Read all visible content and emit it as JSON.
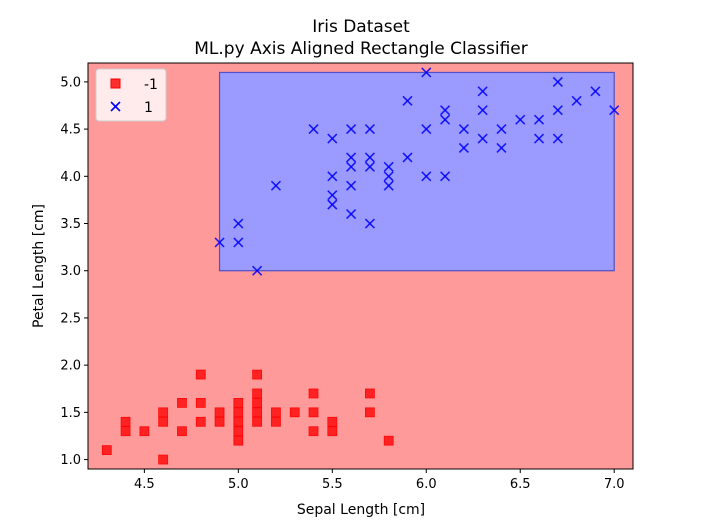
{
  "chart_data": {
    "type": "scatter",
    "title": "Iris Dataset",
    "subtitle": "ML.py Axis Aligned Rectangle Classifier",
    "xlabel": "Sepal Length [cm]",
    "ylabel": "Petal Length [cm]",
    "xlim": [
      4.2,
      7.1
    ],
    "ylim": [
      0.9,
      5.2
    ],
    "xticks": [
      4.5,
      5.0,
      5.5,
      6.0,
      6.5,
      7.0
    ],
    "xtick_labels": [
      "4.5",
      "5.0",
      "5.5",
      "6.0",
      "6.5",
      "7.0"
    ],
    "yticks": [
      1.0,
      1.5,
      2.0,
      2.5,
      3.0,
      3.5,
      4.0,
      4.5,
      5.0
    ],
    "ytick_labels": [
      "1.0",
      "1.5",
      "2.0",
      "2.5",
      "3.0",
      "3.5",
      "4.0",
      "4.5",
      "5.0"
    ],
    "grid": false,
    "legend_position": "top-left",
    "background_region": {
      "label": "-1",
      "color": "#ff9a9a"
    },
    "decision_rectangle": {
      "x": [
        4.9,
        7.0
      ],
      "y": [
        3.0,
        5.1
      ],
      "label": "1",
      "color": "#9a9aff",
      "edge_color": "#5050c8"
    },
    "series": [
      {
        "name": "-1",
        "marker": "square",
        "color": "#ff0000",
        "points": [
          [
            4.3,
            1.1
          ],
          [
            4.4,
            1.4
          ],
          [
            4.4,
            1.3
          ],
          [
            4.5,
            1.3
          ],
          [
            4.6,
            1.5
          ],
          [
            4.6,
            1.4
          ],
          [
            4.6,
            1.0
          ],
          [
            4.7,
            1.6
          ],
          [
            4.7,
            1.3
          ],
          [
            4.8,
            1.9
          ],
          [
            4.8,
            1.6
          ],
          [
            4.8,
            1.4
          ],
          [
            4.9,
            1.5
          ],
          [
            4.9,
            1.4
          ],
          [
            5.0,
            1.6
          ],
          [
            5.0,
            1.5
          ],
          [
            5.0,
            1.4
          ],
          [
            5.0,
            1.3
          ],
          [
            5.0,
            1.2
          ],
          [
            5.1,
            1.9
          ],
          [
            5.1,
            1.7
          ],
          [
            5.1,
            1.6
          ],
          [
            5.1,
            1.5
          ],
          [
            5.1,
            1.4
          ],
          [
            5.2,
            1.5
          ],
          [
            5.2,
            1.4
          ],
          [
            5.3,
            1.5
          ],
          [
            5.4,
            1.7
          ],
          [
            5.4,
            1.5
          ],
          [
            5.4,
            1.3
          ],
          [
            5.5,
            1.4
          ],
          [
            5.5,
            1.3
          ],
          [
            5.7,
            1.7
          ],
          [
            5.7,
            1.5
          ],
          [
            5.8,
            1.2
          ]
        ]
      },
      {
        "name": "1",
        "marker": "x",
        "color": "#0000ff",
        "points": [
          [
            4.9,
            3.3
          ],
          [
            5.0,
            3.5
          ],
          [
            5.0,
            3.3
          ],
          [
            5.1,
            3.0
          ],
          [
            5.2,
            3.9
          ],
          [
            5.4,
            4.5
          ],
          [
            5.5,
            4.4
          ],
          [
            5.5,
            4.0
          ],
          [
            5.5,
            3.8
          ],
          [
            5.5,
            3.7
          ],
          [
            5.6,
            4.5
          ],
          [
            5.6,
            4.2
          ],
          [
            5.6,
            4.1
          ],
          [
            5.6,
            3.9
          ],
          [
            5.6,
            3.6
          ],
          [
            5.7,
            4.5
          ],
          [
            5.7,
            4.2
          ],
          [
            5.7,
            4.1
          ],
          [
            5.7,
            3.5
          ],
          [
            5.8,
            4.1
          ],
          [
            5.8,
            4.0
          ],
          [
            5.8,
            3.9
          ],
          [
            5.9,
            4.8
          ],
          [
            5.9,
            4.2
          ],
          [
            6.0,
            5.1
          ],
          [
            6.0,
            4.5
          ],
          [
            6.0,
            4.0
          ],
          [
            6.1,
            4.7
          ],
          [
            6.1,
            4.6
          ],
          [
            6.1,
            4.0
          ],
          [
            6.2,
            4.5
          ],
          [
            6.2,
            4.3
          ],
          [
            6.3,
            4.9
          ],
          [
            6.3,
            4.7
          ],
          [
            6.3,
            4.4
          ],
          [
            6.4,
            4.5
          ],
          [
            6.4,
            4.3
          ],
          [
            6.5,
            4.6
          ],
          [
            6.6,
            4.6
          ],
          [
            6.6,
            4.4
          ],
          [
            6.7,
            5.0
          ],
          [
            6.7,
            4.7
          ],
          [
            6.7,
            4.4
          ],
          [
            6.8,
            4.8
          ],
          [
            6.9,
            4.9
          ],
          [
            7.0,
            4.7
          ]
        ]
      }
    ]
  }
}
